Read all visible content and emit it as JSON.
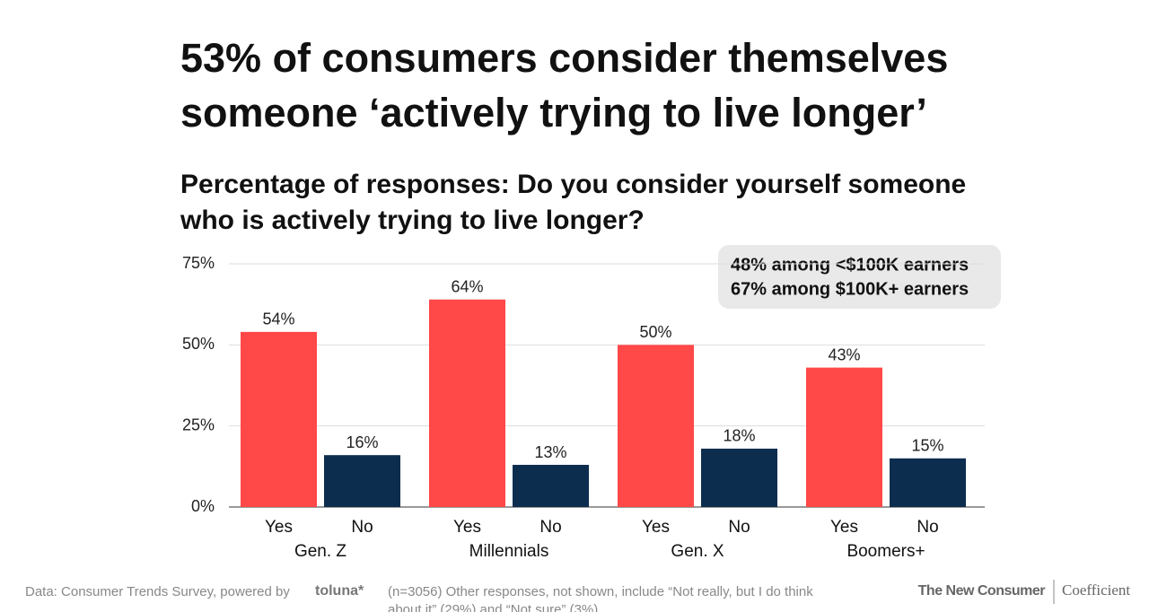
{
  "chart_data": {
    "type": "bar",
    "title": [
      "53% of consumers consider themselves",
      "someone ‘actively trying to live longer’"
    ],
    "subtitle": [
      "Percentage of responses: Do you consider yourself someone",
      "who is actively trying to live longer?"
    ],
    "categories": [
      "Gen. Z",
      "Millennials",
      "Gen. X",
      "Boomers+"
    ],
    "series": [
      {
        "name": "Yes",
        "color": "#ff4848",
        "values": [
          54,
          64,
          50,
          43
        ],
        "value_labels": [
          "54%",
          "64%",
          "50%",
          "43%"
        ]
      },
      {
        "name": "No",
        "color": "#0d2d4f",
        "values": [
          16,
          13,
          18,
          15
        ],
        "value_labels": [
          "16%",
          "13%",
          "18%",
          "15%"
        ]
      }
    ],
    "ylim": [
      0,
      75
    ],
    "yticks": [
      {
        "value": 0,
        "label": "0%"
      },
      {
        "value": 25,
        "label": "25%"
      },
      {
        "value": 50,
        "label": "50%"
      },
      {
        "value": 75,
        "label": "75%"
      }
    ],
    "grid": true,
    "annotation": [
      "48% among <$100K earners",
      "67% among $100K+ earners"
    ],
    "source": "Data: Consumer Trends Survey, powered by",
    "source_logo": "toluna*",
    "footnote": [
      "(n=3056) Other responses, not shown, include “Not really, but I do think",
      "about it” (29%) and “Not sure” (3%)"
    ],
    "brands": [
      "The New Consumer",
      "Coefficient"
    ]
  }
}
